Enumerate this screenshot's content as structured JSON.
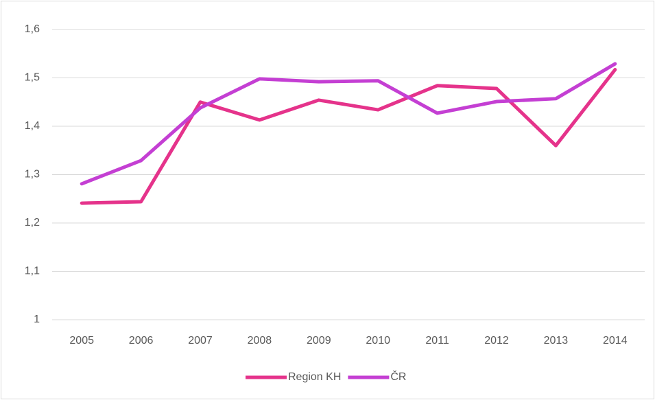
{
  "chart_data": {
    "type": "line",
    "categories": [
      "2005",
      "2006",
      "2007",
      "2008",
      "2009",
      "2010",
      "2011",
      "2012",
      "2013",
      "2014"
    ],
    "series": [
      {
        "name": "Region KH",
        "color": "#e5338b",
        "values": [
          1.241,
          1.244,
          1.45,
          1.413,
          1.454,
          1.434,
          1.484,
          1.478,
          1.36,
          1.517
        ]
      },
      {
        "name": "ČR",
        "color": "#c43fd3",
        "values": [
          1.281,
          1.329,
          1.438,
          1.498,
          1.492,
          1.494,
          1.427,
          1.451,
          1.457,
          1.529
        ]
      }
    ],
    "ylim": [
      1,
      1.6
    ],
    "yticks": [
      1,
      {
        "value": 1.1,
        "label": "1,1"
      },
      {
        "value": 1.2,
        "label": "1,2"
      },
      {
        "value": 1.3,
        "label": "1,3"
      },
      {
        "value": 1.4,
        "label": "1,4"
      },
      {
        "value": 1.5,
        "label": "1,5"
      },
      {
        "value": 1.6,
        "label": "1,6"
      }
    ],
    "grid": true,
    "legend": "bottom"
  }
}
